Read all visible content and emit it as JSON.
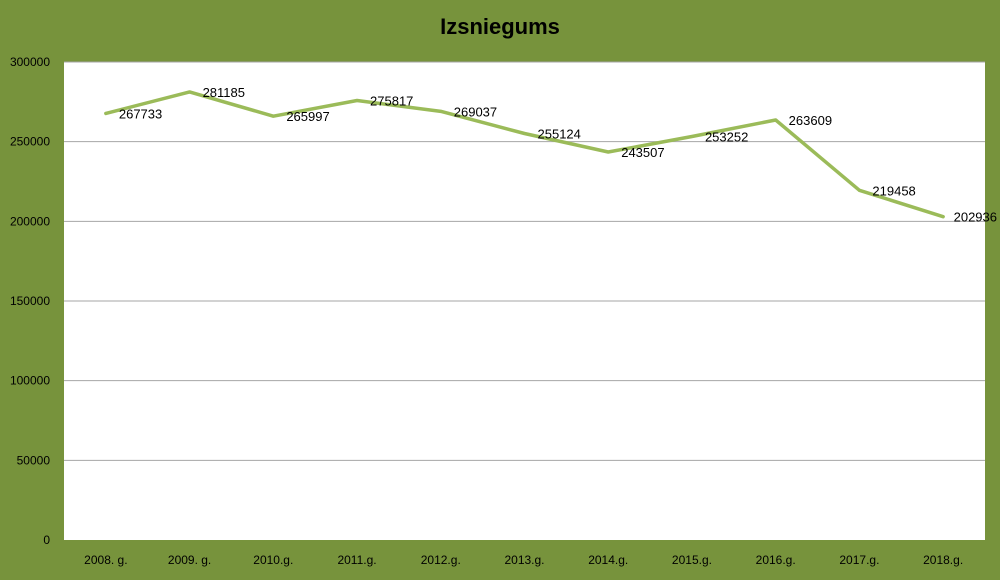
{
  "chart_data": {
    "type": "line",
    "title": "Izsniegums",
    "xlabel": "",
    "ylabel": "",
    "categories": [
      "2008. g.",
      "2009. g.",
      "2010.g.",
      "2011.g.",
      "2012.g.",
      "2013.g.",
      "2014.g.",
      "2015.g.",
      "2016.g.",
      "2017.g.",
      "2018.g."
    ],
    "series": [
      {
        "values": [
          267733,
          281185,
          265997,
          275817,
          269037,
          255124,
          243507,
          253252,
          263609,
          219458,
          202936
        ]
      }
    ],
    "y_ticks": [
      "0",
      "50000",
      "100000",
      "150000",
      "200000",
      "250000",
      "300000"
    ],
    "ylim": [
      0,
      300000
    ],
    "grid": true,
    "legend": "none",
    "colors": {
      "background": "#77933c",
      "plot_area": "#ffffff",
      "line": "#9bbb59",
      "gridline": "#a6a6a6"
    }
  }
}
